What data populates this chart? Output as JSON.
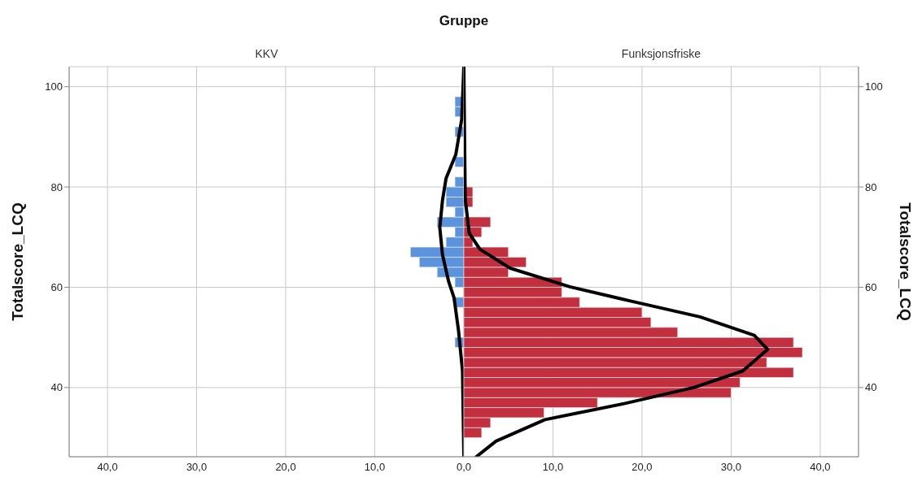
{
  "chart_data": [
    {
      "type": "histogram",
      "orientation": "horizontal",
      "title": "Gruppe",
      "subtitle": "KKV",
      "ylabel": "Totalscore_LCQ",
      "bins": [
        30,
        32,
        34,
        36,
        38,
        40,
        42,
        44,
        46,
        48,
        50,
        52,
        54,
        56,
        58,
        60,
        62,
        64,
        66,
        68,
        70,
        72,
        74,
        76,
        78,
        80,
        82,
        84,
        86,
        88,
        90,
        92,
        94,
        96,
        98
      ],
      "xlim": [
        44.3,
        0
      ],
      "xticks": [
        {
          "value": 40,
          "label": "40,0"
        },
        {
          "value": 30,
          "label": "30,0"
        },
        {
          "value": 20,
          "label": "20,0"
        },
        {
          "value": 10,
          "label": "10,0"
        }
      ],
      "ylim": [
        26.2,
        104
      ],
      "yticks": [
        40,
        60,
        80,
        100
      ],
      "grid": true,
      "color": "#5b93dc",
      "values": [
        0,
        0,
        0,
        0,
        0,
        0,
        0,
        0,
        0,
        1,
        0,
        0,
        0,
        1,
        0,
        1,
        3,
        5,
        6,
        2,
        1,
        3,
        1,
        2,
        2,
        1,
        0,
        1,
        0,
        0,
        1,
        0,
        1,
        1
      ],
      "series": [
        {
          "type": "line",
          "color": "#000000",
          "x": [
            26.2,
            43.3,
            51.4,
            57.9,
            61.1,
            66.5,
            71.9,
            77.3,
            81.7,
            86.5,
            93.5,
            104
          ],
          "values": [
            0,
            0.15,
            0.6,
            1.1,
            1.7,
            2.4,
            2.7,
            2.4,
            2.0,
            0.9,
            0.24,
            0
          ]
        }
      ]
    },
    {
      "type": "histogram",
      "orientation": "horizontal",
      "subtitle": "Funksjonsfriske",
      "ylabel": "Totalscore_LCQ",
      "bins": [
        30,
        32,
        34,
        36,
        38,
        40,
        42,
        44,
        46,
        48,
        50,
        52,
        54,
        56,
        58,
        60,
        62,
        64,
        66,
        68,
        70,
        72,
        74,
        76,
        78,
        80,
        82,
        84,
        86,
        88,
        90,
        92,
        94,
        96,
        98
      ],
      "xlim": [
        0,
        44.3
      ],
      "xticks": [
        {
          "value": 0,
          "label": "0,0"
        },
        {
          "value": 10,
          "label": "10,0"
        },
        {
          "value": 20,
          "label": "20,0"
        },
        {
          "value": 30,
          "label": "30,0"
        },
        {
          "value": 40,
          "label": "40,0"
        }
      ],
      "ylim": [
        26.2,
        104
      ],
      "yticks": [
        40,
        60,
        80,
        100
      ],
      "grid": true,
      "color": "#c2303f",
      "values": [
        2,
        3,
        9,
        15,
        30,
        31,
        37,
        34,
        38,
        37,
        24,
        21,
        20,
        13,
        11,
        11,
        5,
        7,
        5,
        1,
        2,
        3,
        0,
        1,
        1,
        0,
        0,
        0,
        0,
        0,
        0,
        0,
        0,
        0
      ],
      "series": [
        {
          "type": "line",
          "color": "#000000",
          "x": [
            26.2,
            29.3,
            33.6,
            36.8,
            40,
            43.3,
            47.6,
            50.4,
            54.1,
            57.3,
            60.1,
            63.8,
            67.6,
            70.8,
            77.7,
            104
          ],
          "values": [
            1.4,
            3.6,
            9.1,
            18,
            25.8,
            31.3,
            34.1,
            32.6,
            26.5,
            18.6,
            11.9,
            5.2,
            1.8,
            0.6,
            0.15,
            0
          ]
        }
      ]
    }
  ]
}
